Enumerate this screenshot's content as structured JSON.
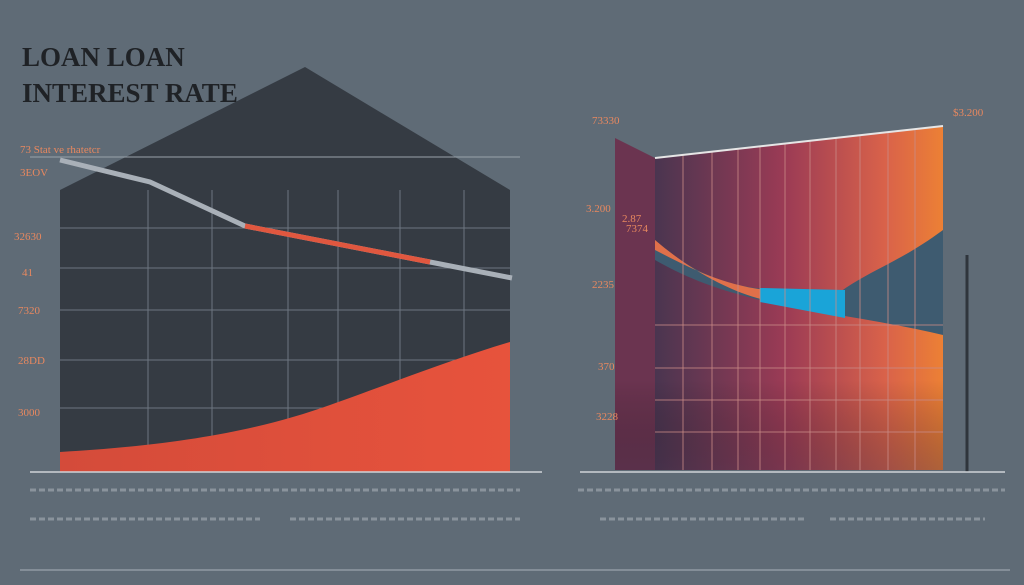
{
  "header": {
    "title_line1": "LOAN LOAN",
    "title_line2": "INTEREST RATE"
  },
  "left_panel": {
    "legend": "73 Stat ve rhatetcr",
    "labels": [
      "3EOV",
      "32630",
      "41",
      "7320",
      "28DD",
      "3000"
    ]
  },
  "right_panel": {
    "top_left": "73330",
    "top_right": "$3.200",
    "labels": [
      "3.200",
      "2.87",
      "7374",
      "2235",
      "370",
      "3228"
    ]
  }
}
